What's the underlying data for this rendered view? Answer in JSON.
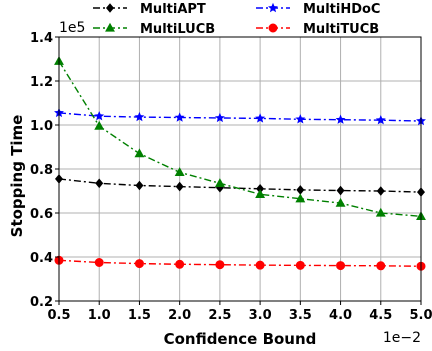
{
  "chart_data": {
    "type": "line",
    "title": "",
    "xlabel": "Confidence Bound",
    "ylabel": "Stopping Time",
    "x_offset_label": "1e−2",
    "y_offset_label": "1e5",
    "xlim": [
      0.5,
      5.0
    ],
    "ylim": [
      0.2,
      1.4
    ],
    "x_ticks": [
      "0.5",
      "1.0",
      "1.5",
      "2.0",
      "2.5",
      "3.0",
      "3.5",
      "4.0",
      "4.5",
      "5.0"
    ],
    "y_ticks": [
      "0.2",
      "0.4",
      "0.6",
      "0.8",
      "1.0",
      "1.2",
      "1.4"
    ],
    "grid": true,
    "legend_placement": "top, two columns",
    "x": [
      0.5,
      1.0,
      1.5,
      2.0,
      2.5,
      3.0,
      3.5,
      4.0,
      4.5,
      5.0
    ],
    "series": [
      {
        "name": "MultiAPT",
        "color": "#000000",
        "marker": "diamond",
        "linestyle": "dashdot",
        "values": [
          0.755,
          0.735,
          0.725,
          0.72,
          0.715,
          0.71,
          0.705,
          0.702,
          0.7,
          0.695
        ]
      },
      {
        "name": "MultiHDoC",
        "color": "#0000ff",
        "marker": "star",
        "linestyle": "dashdot",
        "values": [
          1.055,
          1.04,
          1.036,
          1.034,
          1.032,
          1.03,
          1.026,
          1.024,
          1.022,
          1.018
        ]
      },
      {
        "name": "MultiLUCB",
        "color": "#008000",
        "marker": "triangle",
        "linestyle": "dashdot",
        "values": [
          1.29,
          0.995,
          0.87,
          0.785,
          0.735,
          0.685,
          0.665,
          0.645,
          0.6,
          0.585
        ]
      },
      {
        "name": "MultiTUCB",
        "color": "#ff0000",
        "marker": "circle",
        "linestyle": "dashdot",
        "values": [
          0.385,
          0.375,
          0.37,
          0.367,
          0.365,
          0.363,
          0.362,
          0.361,
          0.36,
          0.358
        ]
      }
    ]
  }
}
